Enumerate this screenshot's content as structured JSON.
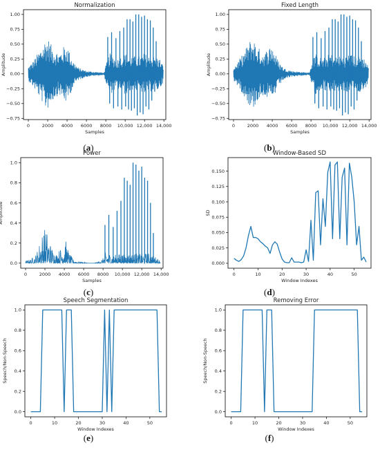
{
  "colors": {
    "line": "#1f77b4",
    "axis": "#000000"
  },
  "panels": [
    {
      "id": "a",
      "caption": "a",
      "title": "Normalization",
      "xlabel": "Samples",
      "ylabel": "Amplitude"
    },
    {
      "id": "b",
      "caption": "b",
      "title": "Fixed Length",
      "xlabel": "Samples",
      "ylabel": "Amplitude"
    },
    {
      "id": "c",
      "caption": "c",
      "title": "Power",
      "xlabel": "Samples",
      "ylabel": "Amplitude"
    },
    {
      "id": "d",
      "caption": "d",
      "title": "Window-Based SD",
      "xlabel": "Window Indexes",
      "ylabel": "SD"
    },
    {
      "id": "e",
      "caption": "e",
      "title": "Speech Segmentation",
      "xlabel": "Window Indexes",
      "ylabel": "Speech/Non-Speech"
    },
    {
      "id": "f",
      "caption": "f",
      "title": "Removing Error",
      "xlabel": "Window Indexes",
      "ylabel": "Speech/Non-Speech"
    }
  ],
  "chart_data": [
    {
      "type": "line",
      "title": "Normalization",
      "xlabel": "Samples",
      "ylabel": "Amplitude",
      "xlim": [
        -500,
        14200
      ],
      "ylim": [
        -0.77,
        1.08
      ],
      "xticks": [
        0,
        2000,
        4000,
        6000,
        8000,
        10000,
        12000,
        14000
      ],
      "xticklabels": [
        "0",
        "2000",
        "4000",
        "6000",
        "8000",
        "10,000",
        "12,000",
        "14,000"
      ],
      "yticks": [
        -0.75,
        -0.5,
        -0.25,
        0.0,
        0.25,
        0.5,
        0.75,
        1.0
      ],
      "yticklabels": [
        "−0.75",
        "−0.50",
        "−0.25",
        "0.00",
        "0.25",
        "0.50",
        "0.75",
        "1.00"
      ],
      "envelope": {
        "x": [
          0,
          500,
          1000,
          1500,
          1800,
          2100,
          2400,
          2800,
          3200,
          3600,
          4000,
          4300,
          4700,
          5200,
          6000,
          6500,
          7200,
          7800,
          8100,
          8400,
          8800,
          9200,
          9600,
          10000,
          10400,
          10800,
          11200,
          11600,
          12000,
          12400,
          12800,
          13200,
          13600,
          13900
        ],
        "y": [
          0.12,
          0.22,
          0.35,
          0.5,
          0.6,
          0.58,
          0.48,
          0.4,
          0.35,
          0.45,
          0.5,
          0.35,
          0.2,
          0.1,
          0.05,
          0.04,
          0.03,
          0.02,
          0.2,
          0.35,
          0.3,
          0.25,
          0.3,
          0.35,
          0.3,
          0.3,
          0.3,
          0.3,
          0.35,
          0.3,
          0.3,
          0.3,
          0.25,
          0.15
        ]
      },
      "spikes_pos": {
        "x": [
          8200,
          8600,
          9050,
          9450,
          9850,
          10200,
          10500,
          10800,
          11100,
          11400,
          11700,
          12000,
          12300,
          12600,
          12900,
          13200
        ],
        "y": [
          0.62,
          0.7,
          0.6,
          0.72,
          0.78,
          0.92,
          0.92,
          0.88,
          1.0,
          1.0,
          0.96,
          0.98,
          0.92,
          0.9,
          0.78,
          0.55
        ]
      },
      "spikes_neg": {
        "x": [
          8400,
          8800,
          9250,
          9650,
          10050,
          10350,
          10650,
          10950,
          11250,
          11550,
          11850,
          12150,
          12450,
          12750,
          13050
        ],
        "y": [
          -0.5,
          -0.58,
          -0.55,
          -0.6,
          -0.55,
          -0.6,
          -0.62,
          -0.58,
          -0.7,
          -0.65,
          -0.68,
          -0.55,
          -0.6,
          -0.45,
          -0.3
        ]
      }
    },
    {
      "type": "line",
      "title": "Fixed Length",
      "xlabel": "Samples",
      "ylabel": "Amplitude",
      "xlim": [
        -500,
        14200
      ],
      "ylim": [
        -0.77,
        1.08
      ],
      "xticks": [
        0,
        2000,
        4000,
        6000,
        8000,
        10000,
        12000,
        14000
      ],
      "xticklabels": [
        "0",
        "2000",
        "4000",
        "6000",
        "8000",
        "10,000",
        "12,000",
        "14,000"
      ],
      "yticks": [
        -0.75,
        -0.5,
        -0.25,
        0.0,
        0.25,
        0.5,
        0.75,
        1.0
      ],
      "yticklabels": [
        "−0.75",
        "−0.50",
        "−0.25",
        "0.00",
        "0.25",
        "0.50",
        "0.75",
        "1.00"
      ],
      "envelope": {
        "x": [
          0,
          500,
          1000,
          1500,
          1800,
          2100,
          2400,
          2800,
          3200,
          3600,
          4000,
          4300,
          4700,
          5200,
          6000,
          6500,
          7200,
          7800,
          8100,
          8400,
          8800,
          9200,
          9600,
          10000,
          10400,
          10800,
          11200,
          11600,
          12000,
          12400,
          12800,
          13200,
          13600,
          13900
        ],
        "y": [
          0.12,
          0.22,
          0.35,
          0.5,
          0.6,
          0.58,
          0.48,
          0.4,
          0.35,
          0.45,
          0.5,
          0.35,
          0.2,
          0.1,
          0.05,
          0.04,
          0.03,
          0.02,
          0.2,
          0.35,
          0.3,
          0.25,
          0.3,
          0.35,
          0.3,
          0.3,
          0.3,
          0.3,
          0.35,
          0.3,
          0.3,
          0.3,
          0.25,
          0.15
        ]
      },
      "spikes_pos": {
        "x": [
          8200,
          8600,
          9050,
          9450,
          9850,
          10200,
          10500,
          10800,
          11100,
          11400,
          11700,
          12000,
          12300,
          12600,
          12900,
          13200
        ],
        "y": [
          0.62,
          0.7,
          0.6,
          0.72,
          0.78,
          0.92,
          0.92,
          0.88,
          1.0,
          1.0,
          0.96,
          0.98,
          0.92,
          0.9,
          0.78,
          0.55
        ]
      },
      "spikes_neg": {
        "x": [
          8400,
          8800,
          9250,
          9650,
          10050,
          10350,
          10650,
          10950,
          11250,
          11550,
          11850,
          12150,
          12450,
          12750,
          13050
        ],
        "y": [
          -0.5,
          -0.58,
          -0.55,
          -0.6,
          -0.55,
          -0.6,
          -0.62,
          -0.58,
          -0.7,
          -0.65,
          -0.68,
          -0.55,
          -0.6,
          -0.45,
          -0.3
        ]
      }
    },
    {
      "type": "line",
      "title": "Power",
      "xlabel": "Samples",
      "ylabel": "Amplitude",
      "xlim": [
        -500,
        14200
      ],
      "ylim": [
        -0.05,
        1.05
      ],
      "xticks": [
        0,
        2000,
        4000,
        6000,
        8000,
        10000,
        12000,
        14000
      ],
      "xticklabels": [
        "0",
        "2000",
        "4000",
        "6000",
        "8000",
        "10,000",
        "12,000",
        "14,000"
      ],
      "yticks": [
        0.0,
        0.2,
        0.4,
        0.6,
        0.8,
        1.0
      ],
      "yticklabels": [
        "0.0",
        "0.2",
        "0.4",
        "0.6",
        "0.8",
        "1.0"
      ],
      "envelope": {
        "x": [
          0,
          500,
          1000,
          1300,
          1600,
          1900,
          2200,
          2500,
          2800,
          3200,
          3600,
          3900,
          4200,
          4500,
          5000,
          5500,
          6000,
          6500,
          7000,
          7500,
          8000,
          8300,
          8700,
          9100,
          9500,
          9900,
          10300,
          10700,
          11100,
          11500,
          11900,
          12300,
          12700,
          13100,
          13500,
          13900
        ],
        "y": [
          0.02,
          0.04,
          0.08,
          0.15,
          0.28,
          0.36,
          0.33,
          0.22,
          0.15,
          0.1,
          0.15,
          0.25,
          0.22,
          0.1,
          0.03,
          0.01,
          0.01,
          0.0,
          0.0,
          0.01,
          0.05,
          0.12,
          0.1,
          0.08,
          0.09,
          0.1,
          0.1,
          0.1,
          0.1,
          0.1,
          0.1,
          0.1,
          0.1,
          0.08,
          0.06,
          0.03
        ]
      },
      "spikes_pos": {
        "x": [
          8200,
          8600,
          9050,
          9450,
          9850,
          10200,
          10500,
          10800,
          11100,
          11400,
          11700,
          12000,
          12300,
          12600,
          12900,
          13200
        ],
        "y": [
          0.38,
          0.48,
          0.36,
          0.52,
          0.62,
          0.85,
          0.82,
          0.78,
          1.0,
          0.98,
          0.92,
          0.96,
          0.85,
          0.82,
          0.6,
          0.3
        ]
      },
      "spikes_neg": {
        "x": [],
        "y": []
      }
    },
    {
      "type": "line",
      "title": "Window-Based SD",
      "xlabel": "Window Indexes",
      "ylabel": "SD",
      "xlim": [
        -2.5,
        57
      ],
      "ylim": [
        -0.008,
        0.172
      ],
      "xticks": [
        0,
        10,
        20,
        30,
        40,
        50
      ],
      "xticklabels": [
        "0",
        "10",
        "20",
        "30",
        "40",
        "50"
      ],
      "yticks": [
        0.0,
        0.025,
        0.05,
        0.075,
        0.1,
        0.125,
        0.15
      ],
      "yticklabels": [
        "0.000",
        "0.025",
        "0.050",
        "0.075",
        "0.100",
        "0.125",
        "0.150"
      ],
      "x": [
        0,
        1,
        2,
        3,
        4,
        5,
        6,
        7,
        8,
        9,
        10,
        11,
        12,
        13,
        14,
        15,
        16,
        17,
        18,
        19,
        20,
        21,
        22,
        23,
        24,
        25,
        26,
        27,
        28,
        29,
        30,
        31,
        32,
        33,
        34,
        35,
        36,
        37,
        38,
        39,
        40,
        41,
        42,
        43,
        44,
        45,
        46,
        47,
        48,
        49,
        50,
        51,
        52,
        53,
        54,
        55
      ],
      "y": [
        0.008,
        0.005,
        0.003,
        0.006,
        0.012,
        0.025,
        0.045,
        0.06,
        0.042,
        0.042,
        0.04,
        0.035,
        0.032,
        0.028,
        0.025,
        0.016,
        0.03,
        0.035,
        0.031,
        0.018,
        0.007,
        0.002,
        0.001,
        0.001,
        0.009,
        0.002,
        0.002,
        0.002,
        0.001,
        0.002,
        0.022,
        0.003,
        0.07,
        0.005,
        0.115,
        0.118,
        0.03,
        0.105,
        0.06,
        0.148,
        0.165,
        0.04,
        0.16,
        0.165,
        0.04,
        0.14,
        0.155,
        0.03,
        0.163,
        0.14,
        0.1,
        0.03,
        0.06,
        0.005,
        0.01,
        0.002
      ]
    },
    {
      "type": "line",
      "title": "Speech Segmentation",
      "xlabel": "Window Indexes",
      "ylabel": "Speech/Non-Speech",
      "xlim": [
        -2.5,
        57
      ],
      "ylim": [
        -0.05,
        1.05
      ],
      "xticks": [
        0,
        10,
        20,
        30,
        40,
        50
      ],
      "xticklabels": [
        "0",
        "10",
        "20",
        "30",
        "40",
        "50"
      ],
      "yticks": [
        0.0,
        0.2,
        0.4,
        0.6,
        0.8,
        1.0
      ],
      "yticklabels": [
        "0.0",
        "0.2",
        "0.4",
        "0.6",
        "0.8",
        "1.0"
      ],
      "x": [
        0,
        1,
        2,
        3,
        4,
        5,
        6,
        7,
        8,
        9,
        10,
        11,
        12,
        13,
        14,
        15,
        16,
        17,
        18,
        19,
        20,
        21,
        22,
        23,
        24,
        25,
        26,
        27,
        28,
        29,
        30,
        31,
        32,
        33,
        34,
        35,
        36,
        37,
        38,
        39,
        40,
        41,
        42,
        43,
        44,
        45,
        46,
        47,
        48,
        49,
        50,
        51,
        52,
        53,
        54,
        55
      ],
      "y": [
        0,
        0,
        0,
        0,
        0,
        1,
        1,
        1,
        1,
        1,
        1,
        1,
        1,
        1,
        0,
        1,
        1,
        1,
        0,
        0,
        0,
        0,
        0,
        0,
        0,
        0,
        0,
        0,
        0,
        0,
        0,
        1,
        0,
        1,
        0,
        1,
        1,
        1,
        1,
        1,
        1,
        1,
        1,
        1,
        1,
        1,
        1,
        1,
        1,
        1,
        1,
        1,
        1,
        1,
        0,
        0
      ]
    },
    {
      "type": "line",
      "title": "Removing Error",
      "xlabel": "Window Indexes",
      "ylabel": "Speech/Non-Speech",
      "xlim": [
        -2.5,
        57
      ],
      "ylim": [
        -0.05,
        1.05
      ],
      "xticks": [
        0,
        10,
        20,
        30,
        40,
        50
      ],
      "xticklabels": [
        "0",
        "10",
        "20",
        "30",
        "40",
        "50"
      ],
      "yticks": [
        0.0,
        0.2,
        0.4,
        0.6,
        0.8,
        1.0
      ],
      "yticklabels": [
        "0.0",
        "0.2",
        "0.4",
        "0.6",
        "0.8",
        "1.0"
      ],
      "x": [
        0,
        1,
        2,
        3,
        4,
        5,
        6,
        7,
        8,
        9,
        10,
        11,
        12,
        13,
        14,
        15,
        16,
        17,
        18,
        19,
        20,
        21,
        22,
        23,
        24,
        25,
        26,
        27,
        28,
        29,
        30,
        31,
        32,
        33,
        34,
        35,
        36,
        37,
        38,
        39,
        40,
        41,
        42,
        43,
        44,
        45,
        46,
        47,
        48,
        49,
        50,
        51,
        52,
        53,
        54,
        55
      ],
      "y": [
        0,
        0,
        0,
        0,
        0,
        1,
        1,
        1,
        1,
        1,
        1,
        1,
        1,
        1,
        0,
        1,
        1,
        1,
        0,
        0,
        0,
        0,
        0,
        0,
        0,
        0,
        0,
        0,
        0,
        0,
        0,
        0,
        0,
        0,
        0,
        1,
        1,
        1,
        1,
        1,
        1,
        1,
        1,
        1,
        1,
        1,
        1,
        1,
        1,
        1,
        1,
        1,
        1,
        1,
        0,
        0
      ]
    }
  ]
}
